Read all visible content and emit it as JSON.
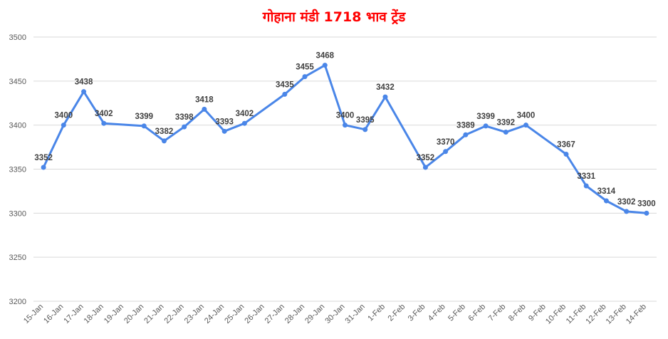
{
  "chart_data": {
    "type": "line",
    "title": "गोहाना मंडी 1718 भाव ट्रेंड",
    "xlabel": "",
    "ylabel": "",
    "ylim": [
      3200,
      3500
    ],
    "yticks": [
      3200,
      3250,
      3300,
      3350,
      3400,
      3450,
      3500
    ],
    "grid": true,
    "legend": "none",
    "categories": [
      "15-Jan",
      "16-Jan",
      "17-Jan",
      "18-Jan",
      "19-Jan",
      "20-Jan",
      "21-Jan",
      "22-Jan",
      "23-Jan",
      "24-Jan",
      "25-Jan",
      "26-Jan",
      "27-Jan",
      "28-Jan",
      "29-Jan",
      "30-Jan",
      "31-Jan",
      "1-Feb",
      "2-Feb",
      "3-Feb",
      "4-Feb",
      "5-Feb",
      "6-Feb",
      "7-Feb",
      "8-Feb",
      "9-Feb",
      "10-Feb",
      "11-Feb",
      "12-Feb",
      "13-Feb",
      "14-Feb"
    ],
    "values": [
      {
        "x": "15-Jan",
        "y": 3352
      },
      {
        "x": "16-Jan",
        "y": 3400
      },
      {
        "x": "17-Jan",
        "y": 3438
      },
      {
        "x": "18-Jan",
        "y": 3402
      },
      {
        "x": "20-Jan",
        "y": 3399
      },
      {
        "x": "21-Jan",
        "y": 3382
      },
      {
        "x": "22-Jan",
        "y": 3398
      },
      {
        "x": "23-Jan",
        "y": 3418
      },
      {
        "x": "24-Jan",
        "y": 3393
      },
      {
        "x": "25-Jan",
        "y": 3402
      },
      {
        "x": "27-Jan",
        "y": 3435
      },
      {
        "x": "28-Jan",
        "y": 3455
      },
      {
        "x": "29-Jan",
        "y": 3468
      },
      {
        "x": "30-Jan",
        "y": 3400
      },
      {
        "x": "31-Jan",
        "y": 3395
      },
      {
        "x": "1-Feb",
        "y": 3432
      },
      {
        "x": "3-Feb",
        "y": 3352
      },
      {
        "x": "4-Feb",
        "y": 3370
      },
      {
        "x": "5-Feb",
        "y": 3389
      },
      {
        "x": "6-Feb",
        "y": 3399
      },
      {
        "x": "7-Feb",
        "y": 3392
      },
      {
        "x": "8-Feb",
        "y": 3400
      },
      {
        "x": "10-Feb",
        "y": 3367
      },
      {
        "x": "11-Feb",
        "y": 3331
      },
      {
        "x": "12-Feb",
        "y": 3314
      },
      {
        "x": "13-Feb",
        "y": 3302
      },
      {
        "x": "14-Feb",
        "y": 3300
      }
    ],
    "colors": {
      "title": "#ff0000",
      "line": "#4a86e8",
      "grid": "#d9d9d9",
      "tick_text": "#595959",
      "label_text": "#404040"
    }
  }
}
